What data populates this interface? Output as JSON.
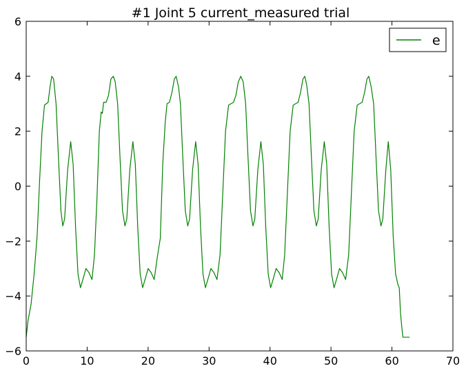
{
  "chart_data": {
    "type": "line",
    "title": "#1 Joint 5 current_measured trial",
    "xlabel": "",
    "ylabel": "",
    "xlim": [
      0,
      70
    ],
    "ylim": [
      -6,
      6
    ],
    "xticks": [
      0,
      10,
      20,
      30,
      40,
      50,
      60,
      70
    ],
    "yticks": [
      -6,
      -4,
      -2,
      0,
      2,
      4,
      6
    ],
    "xtick_labels": [
      "0",
      "10",
      "20",
      "30",
      "40",
      "50",
      "60",
      "70"
    ],
    "ytick_labels": [
      "−6",
      "−4",
      "−2",
      "0",
      "2",
      "4",
      "6"
    ],
    "grid": false,
    "legend": {
      "position": "top-right",
      "entries": [
        "e"
      ]
    },
    "series": [
      {
        "name": "e",
        "color": "#008000",
        "points": [
          [
            0.0,
            -5.5
          ],
          [
            0.3,
            -4.9
          ],
          [
            0.8,
            -4.3
          ],
          [
            1.3,
            -3.2
          ],
          [
            1.8,
            -1.8
          ],
          [
            2.2,
            0.2
          ],
          [
            2.6,
            2.0
          ],
          [
            3.0,
            2.95
          ],
          [
            3.3,
            3.0
          ],
          [
            3.6,
            3.05
          ],
          [
            3.9,
            3.6
          ],
          [
            4.2,
            4.0
          ],
          [
            4.5,
            3.9
          ],
          [
            4.9,
            3.0
          ],
          [
            5.3,
            1.0
          ],
          [
            5.7,
            -0.9
          ],
          [
            6.0,
            -1.45
          ],
          [
            6.3,
            -1.2
          ],
          [
            6.8,
            0.6
          ],
          [
            7.3,
            1.62
          ],
          [
            7.7,
            0.8
          ],
          [
            8.1,
            -1.5
          ],
          [
            8.5,
            -3.2
          ],
          [
            8.9,
            -3.7
          ],
          [
            9.3,
            -3.4
          ],
          [
            9.8,
            -3.0
          ],
          [
            10.3,
            -3.15
          ],
          [
            10.8,
            -3.4
          ],
          [
            11.2,
            -2.5
          ],
          [
            11.6,
            -0.5
          ],
          [
            12.0,
            2.0
          ],
          [
            12.3,
            2.7
          ],
          [
            12.5,
            2.65
          ],
          [
            12.7,
            3.05
          ],
          [
            13.1,
            3.05
          ],
          [
            13.5,
            3.3
          ],
          [
            13.9,
            3.9
          ],
          [
            14.3,
            4.0
          ],
          [
            14.6,
            3.8
          ],
          [
            15.0,
            3.0
          ],
          [
            15.4,
            1.0
          ],
          [
            15.8,
            -0.9
          ],
          [
            16.2,
            -1.45
          ],
          [
            16.5,
            -1.2
          ],
          [
            17.0,
            0.6
          ],
          [
            17.5,
            1.62
          ],
          [
            17.9,
            0.8
          ],
          [
            18.3,
            -1.5
          ],
          [
            18.7,
            -3.2
          ],
          [
            19.1,
            -3.7
          ],
          [
            19.5,
            -3.4
          ],
          [
            20.0,
            -3.0
          ],
          [
            20.5,
            -3.15
          ],
          [
            21.0,
            -3.4
          ],
          [
            21.5,
            -2.6
          ],
          [
            22.0,
            -1.9
          ],
          [
            22.4,
            0.8
          ],
          [
            22.8,
            2.3
          ],
          [
            23.1,
            3.0
          ],
          [
            23.5,
            3.05
          ],
          [
            23.9,
            3.4
          ],
          [
            24.3,
            3.9
          ],
          [
            24.6,
            4.0
          ],
          [
            25.0,
            3.6
          ],
          [
            25.3,
            3.0
          ],
          [
            25.7,
            1.0
          ],
          [
            26.1,
            -0.9
          ],
          [
            26.5,
            -1.45
          ],
          [
            26.8,
            -1.2
          ],
          [
            27.3,
            0.6
          ],
          [
            27.8,
            1.62
          ],
          [
            28.2,
            0.8
          ],
          [
            28.6,
            -1.5
          ],
          [
            29.0,
            -3.2
          ],
          [
            29.4,
            -3.7
          ],
          [
            29.8,
            -3.4
          ],
          [
            30.3,
            -3.0
          ],
          [
            30.8,
            -3.15
          ],
          [
            31.3,
            -3.4
          ],
          [
            31.8,
            -2.5
          ],
          [
            32.2,
            -0.5
          ],
          [
            32.7,
            2.0
          ],
          [
            33.2,
            2.95
          ],
          [
            33.6,
            3.0
          ],
          [
            34.0,
            3.05
          ],
          [
            34.4,
            3.3
          ],
          [
            34.8,
            3.8
          ],
          [
            35.2,
            4.0
          ],
          [
            35.6,
            3.8
          ],
          [
            36.0,
            3.0
          ],
          [
            36.4,
            1.0
          ],
          [
            36.8,
            -0.9
          ],
          [
            37.2,
            -1.45
          ],
          [
            37.5,
            -1.2
          ],
          [
            38.0,
            0.6
          ],
          [
            38.5,
            1.62
          ],
          [
            38.9,
            0.8
          ],
          [
            39.3,
            -1.5
          ],
          [
            39.7,
            -3.2
          ],
          [
            40.1,
            -3.7
          ],
          [
            40.5,
            -3.4
          ],
          [
            41.0,
            -3.0
          ],
          [
            41.5,
            -3.15
          ],
          [
            42.0,
            -3.4
          ],
          [
            42.4,
            -2.5
          ],
          [
            42.8,
            -0.5
          ],
          [
            43.3,
            2.0
          ],
          [
            43.8,
            2.95
          ],
          [
            44.2,
            3.0
          ],
          [
            44.6,
            3.05
          ],
          [
            45.0,
            3.4
          ],
          [
            45.4,
            3.9
          ],
          [
            45.7,
            4.0
          ],
          [
            46.0,
            3.7
          ],
          [
            46.4,
            3.0
          ],
          [
            46.8,
            1.0
          ],
          [
            47.2,
            -0.9
          ],
          [
            47.6,
            -1.45
          ],
          [
            47.9,
            -1.2
          ],
          [
            48.4,
            0.6
          ],
          [
            48.9,
            1.62
          ],
          [
            49.3,
            0.8
          ],
          [
            49.7,
            -1.5
          ],
          [
            50.1,
            -3.2
          ],
          [
            50.5,
            -3.7
          ],
          [
            50.9,
            -3.4
          ],
          [
            51.4,
            -3.0
          ],
          [
            51.9,
            -3.15
          ],
          [
            52.4,
            -3.4
          ],
          [
            52.9,
            -2.5
          ],
          [
            53.3,
            -0.5
          ],
          [
            53.8,
            2.0
          ],
          [
            54.3,
            2.95
          ],
          [
            54.7,
            3.0
          ],
          [
            55.1,
            3.05
          ],
          [
            55.5,
            3.4
          ],
          [
            55.9,
            3.9
          ],
          [
            56.2,
            4.0
          ],
          [
            56.6,
            3.6
          ],
          [
            57.0,
            3.0
          ],
          [
            57.4,
            1.0
          ],
          [
            57.8,
            -0.9
          ],
          [
            58.2,
            -1.45
          ],
          [
            58.5,
            -1.2
          ],
          [
            59.0,
            0.6
          ],
          [
            59.4,
            1.62
          ],
          [
            59.8,
            0.6
          ],
          [
            60.2,
            -1.8
          ],
          [
            60.6,
            -3.2
          ],
          [
            61.0,
            -3.6
          ],
          [
            61.2,
            -3.7
          ],
          [
            61.4,
            -4.6
          ],
          [
            61.6,
            -5.1
          ],
          [
            61.8,
            -5.5
          ],
          [
            62.9,
            -5.5
          ]
        ]
      }
    ]
  }
}
